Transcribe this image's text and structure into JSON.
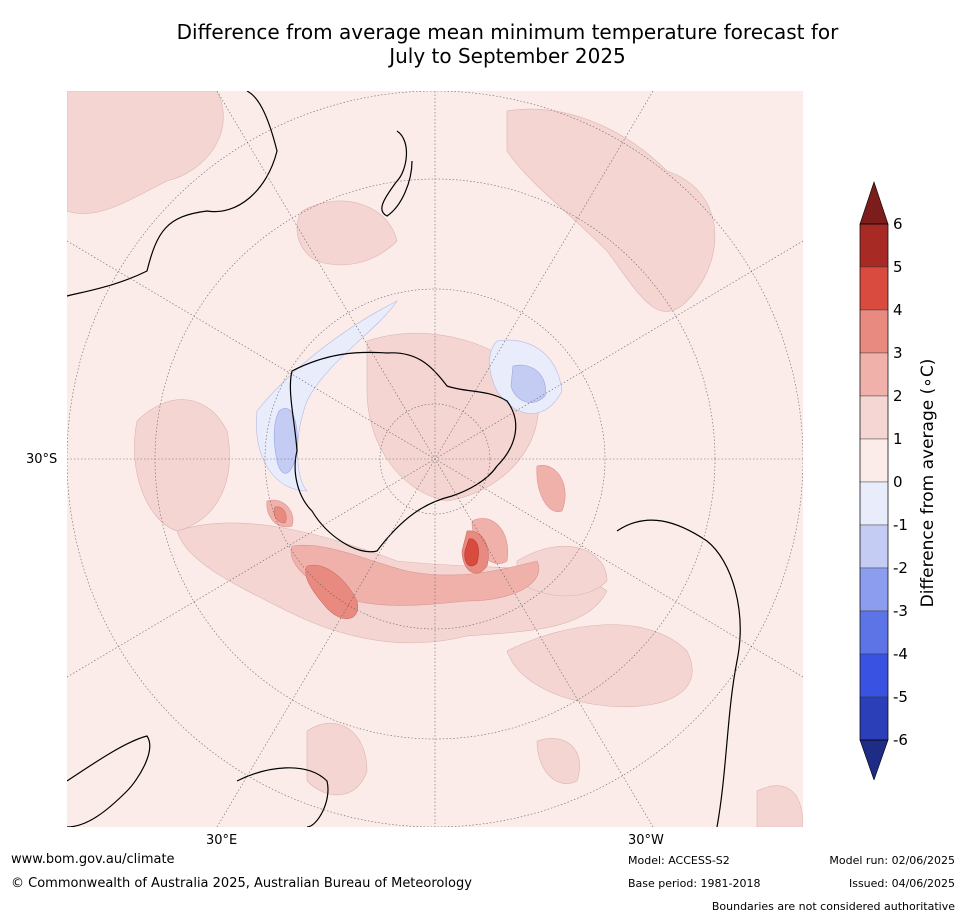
{
  "title_line1": "Difference from average mean minimum temperature forecast for",
  "title_line2": "July to September 2025",
  "map": {
    "lat_label": "30°S",
    "lon_labels": [
      "30°E",
      "30°W"
    ]
  },
  "colorbar": {
    "title": "Difference from average (∘C)",
    "ticks": [
      "6",
      "5",
      "4",
      "3",
      "2",
      "1",
      "0",
      "-1",
      "-2",
      "-3",
      "-4",
      "-5",
      "-6"
    ],
    "colors_top_to_bottom": [
      "#a82a24",
      "#d94a3f",
      "#e88a80",
      "#efb1aa",
      "#f6d6d3",
      "#fbebe9",
      "#e9ecfb",
      "#c4ccf3",
      "#8c9df0",
      "#5d74e6",
      "#3a52e2",
      "#2a3fb8"
    ],
    "extend_high_color": "#7b1d1a",
    "extend_low_color": "#1f2c85"
  },
  "footer": {
    "website": "www.bom.gov.au/climate",
    "copyright": "© Commonwealth of Australia 2025, Australian Bureau of Meteorology",
    "model": "Model: ACCESS-S2",
    "base_period": "Base period: 1981-2018",
    "model_run": "Model run: 02/06/2025",
    "issued": "Issued: 04/06/2025",
    "disclaimer": "Boundaries are not considered authoritative"
  }
}
